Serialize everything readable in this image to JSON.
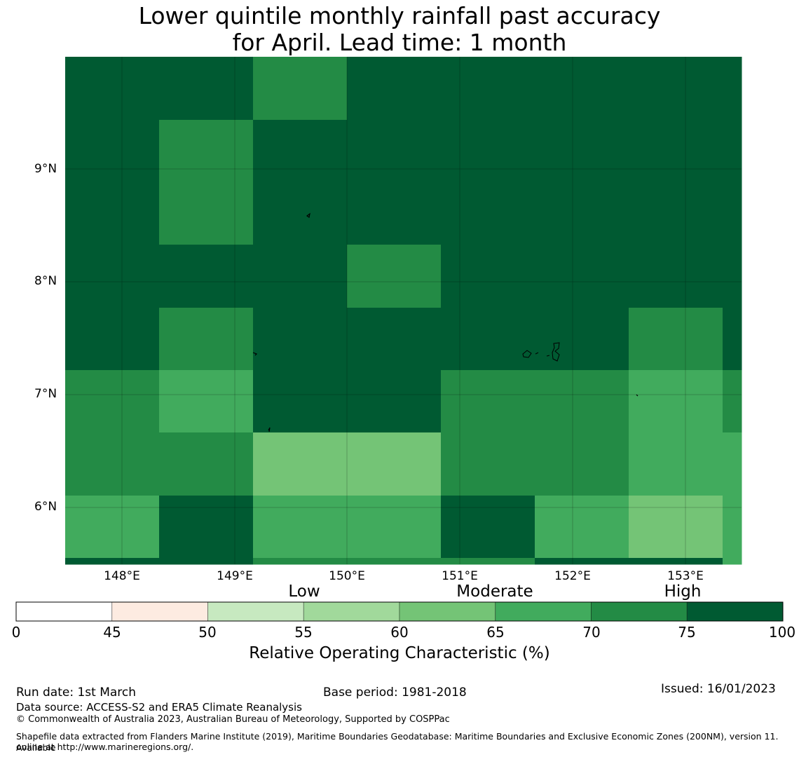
{
  "title_line1": "Lower quintile monthly rainfall past accuracy",
  "title_line2": "for April. Lead time: 1 month",
  "lat_labels": [
    "9°N",
    "8°N",
    "7°N",
    "6°N"
  ],
  "lon_labels": [
    "148°E",
    "149°E",
    "150°E",
    "151°E",
    "152°E",
    "153°E"
  ],
  "legend": {
    "categories": [
      "Low",
      "Moderate",
      "High"
    ],
    "ticks": [
      "0",
      "45",
      "50",
      "55",
      "60",
      "65",
      "70",
      "75",
      "100"
    ],
    "bins": [
      {
        "from": 0,
        "to": 45,
        "color": "#ffffff"
      },
      {
        "from": 45,
        "to": 50,
        "color": "#fdebe1"
      },
      {
        "from": 50,
        "to": 55,
        "color": "#c7e9c0"
      },
      {
        "from": 55,
        "to": 60,
        "color": "#a1d99b"
      },
      {
        "from": 60,
        "to": 65,
        "color": "#74c476"
      },
      {
        "from": 65,
        "to": 70,
        "color": "#41ab5d"
      },
      {
        "from": 70,
        "to": 75,
        "color": "#238b45"
      },
      {
        "from": 75,
        "to": 100,
        "color": "#005a32"
      }
    ],
    "label": "Relative Operating Characteristic (%)"
  },
  "grid_values": [
    [
      80,
      80,
      72,
      80,
      80,
      80,
      80,
      80
    ],
    [
      80,
      72,
      80,
      80,
      80,
      80,
      80,
      80
    ],
    [
      80,
      72,
      80,
      80,
      80,
      80,
      80,
      80
    ],
    [
      80,
      80,
      80,
      72,
      80,
      80,
      80,
      80
    ],
    [
      80,
      72,
      80,
      80,
      80,
      80,
      72,
      80
    ],
    [
      72,
      67,
      80,
      80,
      72,
      72,
      67,
      72
    ],
    [
      72,
      72,
      62,
      62,
      72,
      72,
      67,
      67
    ],
    [
      67,
      80,
      67,
      67,
      80,
      67,
      62,
      67
    ],
    [
      80,
      80,
      72,
      72,
      72,
      80,
      80,
      67
    ]
  ],
  "footer": {
    "run_date": "Run date: 1st March",
    "base_period": "Base period: 1981-2018",
    "issued": "Issued: 16/01/2023",
    "data_source": "Data source: ACCESS-S2 and ERA5 Climate Reanalysis",
    "copyright": "© Commonwealth of Australia 2023, Australian Bureau of Meteorology, Supported by COSPPac",
    "shapefile_line1": "Shapefile data extracted from Flanders Marine Institute (2019), Maritime Boundaries Geodatabase: Maritime Boundaries and Exclusive Economic Zones (200NM), version 11. Available",
    "shapefile_line2": "online at http://www.marineregions.org/."
  }
}
